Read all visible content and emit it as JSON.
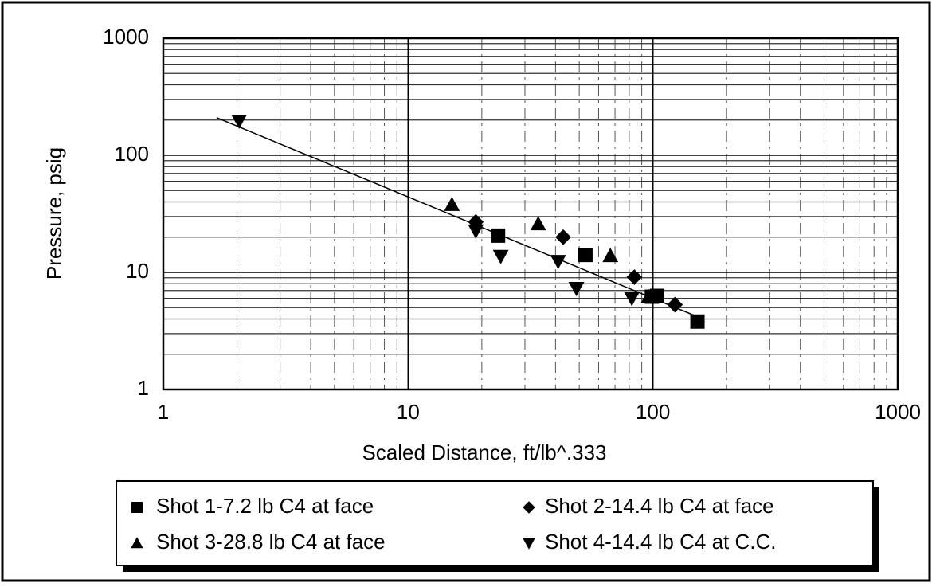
{
  "chart_data": {
    "type": "scatter",
    "x_label": "Scaled Distance, ft/lb^.333",
    "y_label": "Pressure, psig",
    "x_scale": "log",
    "y_scale": "log",
    "xlim": [
      1,
      1000
    ],
    "ylim": [
      1,
      1000
    ],
    "xticks": [
      1,
      10,
      100,
      1000
    ],
    "yticks": [
      1,
      10,
      100,
      1000
    ],
    "grid": true,
    "minor_grid": true,
    "legend": "bottom",
    "series": [
      {
        "name": "Shot 1-7.2 lb C4 at face",
        "marker": "square",
        "color": "#000000",
        "x": [
          23.3,
          53,
          99,
          104,
          152
        ],
        "values": [
          20.6,
          14.1,
          6.2,
          6.3,
          3.8
        ]
      },
      {
        "name": "Shot 2-14.4 lb C4 at face",
        "marker": "diamond",
        "color": "#000000",
        "x": [
          18.9,
          43,
          84,
          123
        ],
        "values": [
          27,
          20,
          9.1,
          5.3
        ]
      },
      {
        "name": "Shot 3-28.8 lb C4 at face",
        "marker": "triangle-up",
        "color": "#000000",
        "x": [
          15.1,
          34,
          67,
          96
        ],
        "values": [
          38,
          26,
          13.9,
          6.2
        ]
      },
      {
        "name": "Shot 4-14.4 lb C4 at C.C.",
        "marker": "triangle-down",
        "color": "#000000",
        "x": [
          2.04,
          18.9,
          23.9,
          41,
          48.7,
          82
        ],
        "values": [
          196,
          22.6,
          13.7,
          12.4,
          7.3,
          6.0
        ]
      }
    ],
    "trend_line": {
      "x": [
        1.65,
        160
      ],
      "values": [
        210,
        4
      ],
      "color": "#000000"
    }
  }
}
